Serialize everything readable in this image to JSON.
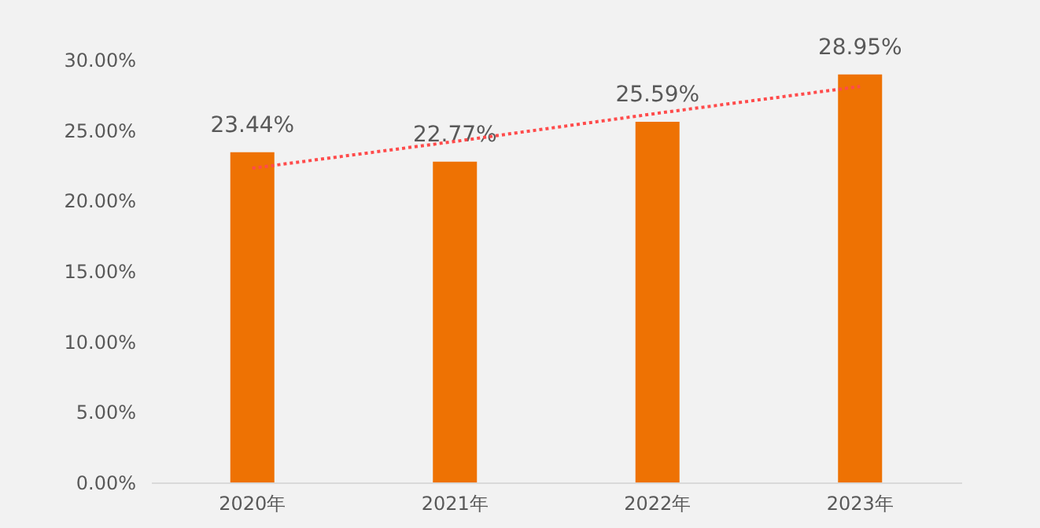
{
  "chart_data": {
    "type": "bar",
    "categories": [
      "2020年",
      "2021年",
      "2022年",
      "2023年"
    ],
    "series": [
      {
        "color": "#ee7203",
        "values": [
          23.44,
          22.77,
          25.59,
          28.95
        ],
        "value_labels": [
          "23.44%",
          "22.77%",
          "25.59%",
          "28.95%"
        ]
      },
      {
        "type": "line",
        "color": "#ff4b4b",
        "line_style": "dotted",
        "values": [
          22.3,
          24.2,
          26.2,
          28.1
        ]
      }
    ],
    "ylim": [
      0,
      30
    ],
    "yticks": [
      {
        "value": 0,
        "label": "0.00%"
      },
      {
        "value": 5,
        "label": "5.00%"
      },
      {
        "value": 10,
        "label": "10.00%"
      },
      {
        "value": 15,
        "label": "15.00%"
      },
      {
        "value": 20,
        "label": "20.00%"
      },
      {
        "value": 25,
        "label": "25.00%"
      },
      {
        "value": 30,
        "label": "30.00%"
      }
    ],
    "grid": false,
    "legend": false
  }
}
